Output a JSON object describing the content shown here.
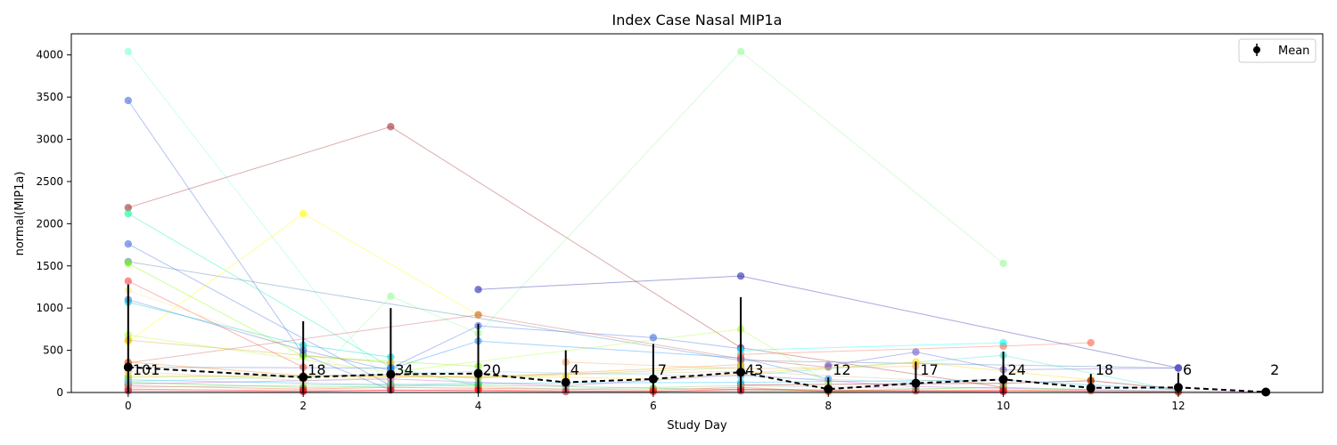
{
  "chart_data": {
    "type": "line",
    "title": "Index Case Nasal MIP1a",
    "xlabel": "Study Day",
    "ylabel": "normal(MIP1a)",
    "xlim": [
      -0.65,
      13.65
    ],
    "ylim": [
      0,
      4250
    ],
    "x_ticks": [
      0,
      2,
      4,
      6,
      8,
      10,
      12
    ],
    "y_ticks": [
      0,
      500,
      1000,
      1500,
      2000,
      2500,
      3000,
      3500,
      4000
    ],
    "grid": false,
    "legend": {
      "position": "top-right",
      "entries": [
        "Mean"
      ]
    },
    "mean_series": {
      "name": "Mean",
      "color": "#000000",
      "points": [
        {
          "x": 0,
          "y": 300,
          "err_low": 300,
          "err_high": 980
        },
        {
          "x": 2,
          "y": 180,
          "err_low": 180,
          "err_high": 665
        },
        {
          "x": 3,
          "y": 215,
          "err_low": 215,
          "err_high": 785
        },
        {
          "x": 4,
          "y": 225,
          "err_low": 225,
          "err_high": 590
        },
        {
          "x": 5,
          "y": 120,
          "err_low": 120,
          "err_high": 380
        },
        {
          "x": 6,
          "y": 160,
          "err_low": 160,
          "err_high": 415
        },
        {
          "x": 7,
          "y": 240,
          "err_low": 240,
          "err_high": 890
        },
        {
          "x": 8,
          "y": 40,
          "err_low": 40,
          "err_high": 140
        },
        {
          "x": 9,
          "y": 110,
          "err_low": 110,
          "err_high": 255
        },
        {
          "x": 10,
          "y": 155,
          "err_low": 155,
          "err_high": 330
        },
        {
          "x": 11,
          "y": 55,
          "err_low": 55,
          "err_high": 165
        },
        {
          "x": 12,
          "y": 60,
          "err_low": 60,
          "err_high": 175
        },
        {
          "x": 13,
          "y": 5,
          "err_low": 5,
          "err_high": 20
        }
      ]
    },
    "sample_counts": [
      {
        "x": 0,
        "label": "101"
      },
      {
        "x": 2,
        "label": "18"
      },
      {
        "x": 3,
        "label": "34"
      },
      {
        "x": 4,
        "label": "20"
      },
      {
        "x": 5,
        "label": "4"
      },
      {
        "x": 6,
        "label": "7"
      },
      {
        "x": 7,
        "label": "43"
      },
      {
        "x": 8,
        "label": "12"
      },
      {
        "x": 9,
        "label": "17"
      },
      {
        "x": 10,
        "label": "24"
      },
      {
        "x": 11,
        "label": "18"
      },
      {
        "x": 12,
        "label": "6"
      },
      {
        "x": 13,
        "label": "2"
      }
    ],
    "series": [
      {
        "color": "#7fffd4",
        "points": [
          [
            0,
            4040
          ],
          [
            3,
            40
          ]
        ]
      },
      {
        "color": "#4169e1",
        "points": [
          [
            0,
            3460
          ],
          [
            2,
            450
          ],
          [
            3,
            30
          ]
        ]
      },
      {
        "color": "#a52a2a",
        "points": [
          [
            0,
            2190
          ],
          [
            3,
            3150
          ],
          [
            7,
            530
          ],
          [
            10,
            60
          ]
        ]
      },
      {
        "color": "#00fa9a",
        "points": [
          [
            0,
            2120
          ],
          [
            3,
            300
          ],
          [
            4,
            80
          ]
        ]
      },
      {
        "color": "#4169e1",
        "points": [
          [
            0,
            1760
          ],
          [
            3,
            80
          ]
        ]
      },
      {
        "color": "#4682b4",
        "points": [
          [
            0,
            1550
          ],
          [
            7,
            380
          ],
          [
            12,
            290
          ]
        ]
      },
      {
        "color": "#7cfc00",
        "points": [
          [
            0,
            1530
          ],
          [
            2,
            430
          ],
          [
            4,
            310
          ]
        ]
      },
      {
        "color": "#ff4040",
        "points": [
          [
            0,
            1320
          ],
          [
            2,
            300
          ]
        ]
      },
      {
        "color": "#f0e68c",
        "points": [
          [
            0,
            1210
          ],
          [
            3,
            120
          ]
        ]
      },
      {
        "color": "#4169e1",
        "points": [
          [
            0,
            1100
          ],
          [
            2,
            500
          ],
          [
            3,
            260
          ]
        ]
      },
      {
        "color": "#00ced1",
        "points": [
          [
            0,
            1070
          ],
          [
            2,
            560
          ],
          [
            3,
            420
          ]
        ]
      },
      {
        "color": "#adff2f",
        "points": [
          [
            0,
            680
          ],
          [
            3,
            240
          ],
          [
            7,
            750
          ],
          [
            8,
            120
          ]
        ]
      },
      {
        "color": "#ffff00",
        "points": [
          [
            0,
            600
          ],
          [
            2,
            2120
          ],
          [
            4,
            920
          ]
        ]
      },
      {
        "color": "#daa520",
        "points": [
          [
            0,
            620
          ],
          [
            3,
            350
          ]
        ]
      },
      {
        "color": "#ff8c00",
        "points": [
          [
            0,
            360
          ],
          [
            2,
            200
          ],
          [
            4,
            180
          ],
          [
            7,
            330
          ]
        ]
      },
      {
        "color": "#98fb98",
        "points": [
          [
            2,
            60
          ],
          [
            3,
            1140
          ],
          [
            4,
            700
          ],
          [
            7,
            4040
          ],
          [
            10,
            1530
          ]
        ]
      },
      {
        "color": "#4169e1",
        "points": [
          [
            0,
            300
          ],
          [
            3,
            290
          ],
          [
            4,
            790
          ],
          [
            6,
            650
          ],
          [
            7,
            520
          ]
        ]
      },
      {
        "color": "#1e90ff",
        "points": [
          [
            3,
            280
          ],
          [
            4,
            610
          ],
          [
            7,
            410
          ],
          [
            8,
            160
          ]
        ]
      },
      {
        "color": "#2323b0",
        "points": [
          [
            4,
            1220
          ],
          [
            7,
            1380
          ],
          [
            12,
            290
          ]
        ]
      },
      {
        "color": "#cd5c5c",
        "points": [
          [
            0,
            350
          ],
          [
            4,
            920
          ],
          [
            7,
            400
          ],
          [
            8,
            300
          ]
        ]
      },
      {
        "color": "#ff6347",
        "points": [
          [
            7,
            450
          ],
          [
            10,
            550
          ],
          [
            11,
            590
          ]
        ]
      },
      {
        "color": "#00ffff",
        "points": [
          [
            7,
            500
          ],
          [
            10,
            590
          ]
        ]
      },
      {
        "color": "#6a5acd",
        "points": [
          [
            8,
            320
          ],
          [
            9,
            480
          ],
          [
            10,
            270
          ],
          [
            12,
            290
          ]
        ]
      },
      {
        "color": "#40e0d0",
        "points": [
          [
            7,
            200
          ],
          [
            10,
            440
          ],
          [
            12,
            20
          ]
        ]
      },
      {
        "color": "#f4a460",
        "points": [
          [
            5,
            360
          ],
          [
            7,
            280
          ],
          [
            9,
            310
          ]
        ]
      },
      {
        "color": "#ffd700",
        "points": [
          [
            0,
            200
          ],
          [
            5,
            180
          ],
          [
            6,
            160
          ],
          [
            9,
            360
          ],
          [
            11,
            150
          ]
        ]
      },
      {
        "color": "#8b0000",
        "points": [
          [
            7,
            90
          ],
          [
            10,
            110
          ],
          [
            11,
            140
          ],
          [
            12,
            40
          ]
        ]
      },
      {
        "color": "#00bfff",
        "points": [
          [
            0,
            150
          ],
          [
            3,
            90
          ],
          [
            4,
            110
          ],
          [
            7,
            120
          ],
          [
            10,
            150
          ],
          [
            12,
            30
          ]
        ]
      },
      {
        "color": "#32cd32",
        "points": [
          [
            0,
            120
          ],
          [
            2,
            60
          ],
          [
            4,
            90
          ],
          [
            6,
            50
          ],
          [
            8,
            20
          ],
          [
            10,
            60
          ],
          [
            12,
            10
          ]
        ]
      },
      {
        "color": "#ba55d3",
        "points": [
          [
            0,
            100
          ],
          [
            3,
            160
          ],
          [
            5,
            80
          ],
          [
            7,
            210
          ],
          [
            9,
            70
          ],
          [
            11,
            30
          ],
          [
            13,
            5
          ]
        ]
      },
      {
        "color": "#ff4500",
        "points": [
          [
            0,
            80
          ],
          [
            2,
            40
          ],
          [
            3,
            60
          ],
          [
            4,
            50
          ],
          [
            6,
            30
          ],
          [
            7,
            60
          ],
          [
            8,
            10
          ],
          [
            10,
            30
          ],
          [
            11,
            20
          ]
        ]
      },
      {
        "color": "#ff0000",
        "points": [
          [
            0,
            40
          ],
          [
            2,
            20
          ],
          [
            4,
            30
          ],
          [
            6,
            10
          ],
          [
            7,
            40
          ],
          [
            9,
            20
          ],
          [
            10,
            20
          ],
          [
            12,
            5
          ]
        ]
      },
      {
        "color": "#8fbc8f",
        "points": [
          [
            0,
            60
          ],
          [
            3,
            100
          ],
          [
            5,
            40
          ],
          [
            7,
            80
          ],
          [
            9,
            50
          ]
        ]
      },
      {
        "color": "#dc143c",
        "points": [
          [
            0,
            20
          ],
          [
            2,
            10
          ],
          [
            3,
            30
          ],
          [
            5,
            10
          ],
          [
            7,
            20
          ],
          [
            10,
            10
          ]
        ]
      },
      {
        "color": "#9acd32",
        "points": [
          [
            0,
            180
          ],
          [
            3,
            210
          ],
          [
            4,
            170
          ],
          [
            7,
            300
          ]
        ]
      },
      {
        "color": "#87ceeb",
        "points": [
          [
            0,
            130
          ],
          [
            4,
            250
          ],
          [
            7,
            190
          ],
          [
            9,
            120
          ]
        ]
      },
      {
        "color": "#deb887",
        "points": [
          [
            0,
            250
          ],
          [
            2,
            140
          ],
          [
            3,
            180
          ],
          [
            7,
            250
          ],
          [
            10,
            100
          ]
        ]
      }
    ]
  }
}
